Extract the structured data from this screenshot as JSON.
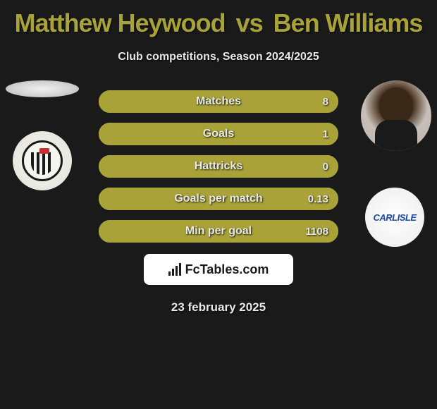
{
  "title": {
    "player1": "Matthew Heywood",
    "vs": "vs",
    "player2": "Ben Williams",
    "player1_color": "#a8a238",
    "player2_color": "#a8a238"
  },
  "subtitle": "Club competitions, Season 2024/2025",
  "bars": {
    "fill_color": "#a8a238",
    "border_color": "#b8b050",
    "rows": [
      {
        "label": "Matches",
        "left": "",
        "right": "8",
        "right_fill_pct": 100
      },
      {
        "label": "Goals",
        "left": "",
        "right": "1",
        "right_fill_pct": 100
      },
      {
        "label": "Hattricks",
        "left": "",
        "right": "0",
        "right_fill_pct": 100
      },
      {
        "label": "Goals per match",
        "left": "",
        "right": "0.13",
        "right_fill_pct": 100
      },
      {
        "label": "Min per goal",
        "left": "",
        "right": "1108",
        "right_fill_pct": 100
      }
    ]
  },
  "crest_right_text": "CARLISLE",
  "crest_right_color": "#1a4aa0",
  "footer_brand": "FcTables.com",
  "date": "23 february 2025"
}
